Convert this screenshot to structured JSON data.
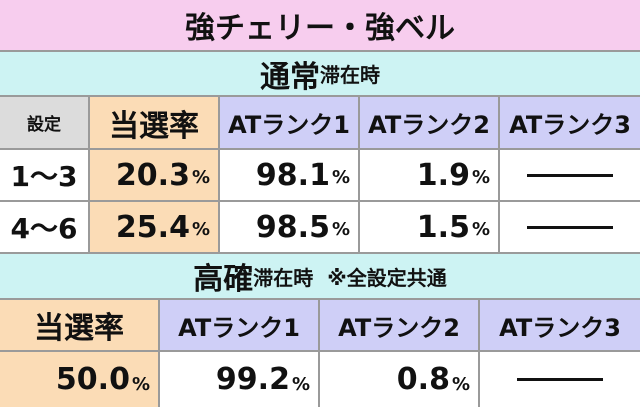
{
  "title": "強チェリー・強ベル",
  "normal": {
    "heading": "通常",
    "heading_suffix": "滞在時",
    "columns": [
      "設定",
      "当選率",
      "ATランク1",
      "ATランク2",
      "ATランク3"
    ],
    "rows": [
      {
        "setting": "1〜3",
        "rate": "20.3",
        "rank1": "98.1",
        "rank2": "1.9"
      },
      {
        "setting": "4〜6",
        "rate": "25.4",
        "rank1": "98.5",
        "rank2": "1.5"
      }
    ]
  },
  "high": {
    "heading": "高確",
    "heading_suffix": "滞在時",
    "note": "※全設定共通",
    "columns": [
      "当選率",
      "ATランク1",
      "ATランク2",
      "ATランク3"
    ],
    "row": {
      "rate": "50.0",
      "rank1": "99.2",
      "rank2": "0.8"
    }
  },
  "unit": "%"
}
